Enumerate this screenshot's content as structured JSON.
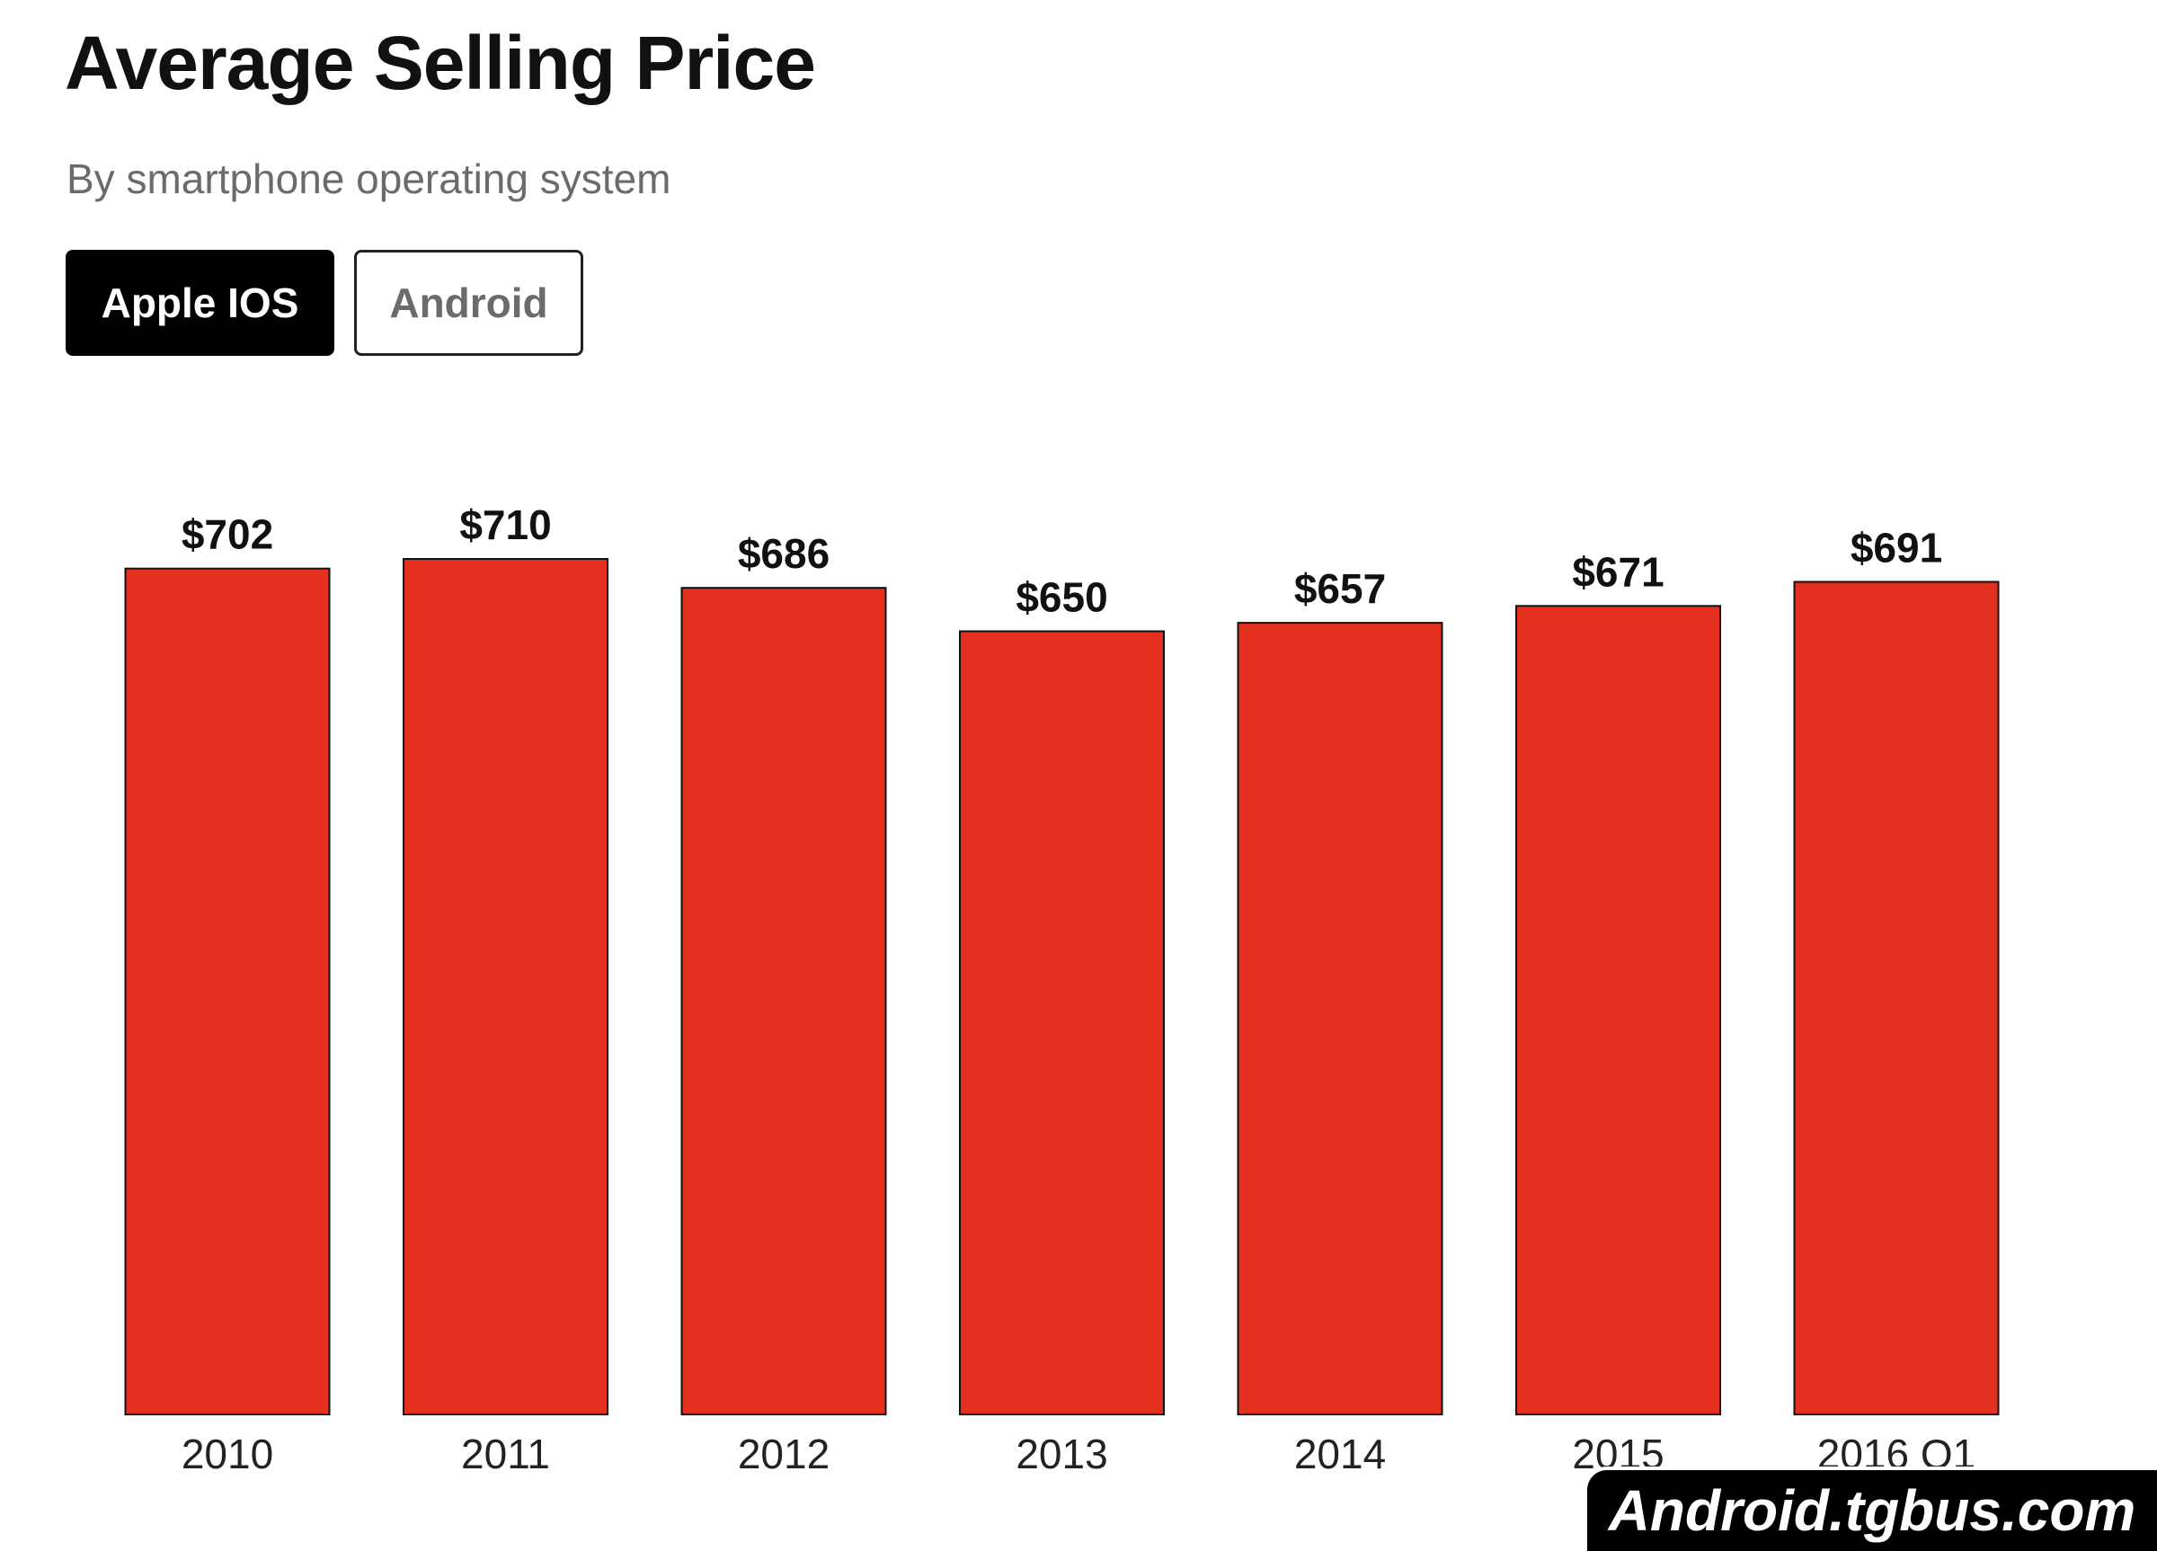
{
  "header": {
    "title": "Average Selling Price",
    "subtitle": "By smartphone operating system"
  },
  "tabs": [
    {
      "label": "Apple IOS",
      "active": true
    },
    {
      "label": "Android",
      "active": false
    }
  ],
  "colors": {
    "bar": "#e53020",
    "bar_outline": "#111111",
    "label_text": "#111111",
    "tick_text": "#222222"
  },
  "chart_data": {
    "type": "bar",
    "title": "Average Selling Price",
    "subtitle": "By smartphone operating system",
    "categories": [
      "2010",
      "2011",
      "2012",
      "2013",
      "2014",
      "2015",
      "2016 Q1"
    ],
    "values": [
      702,
      710,
      686,
      650,
      657,
      671,
      691
    ],
    "data_labels": [
      "$702",
      "$710",
      "$686",
      "$650",
      "$657",
      "$671",
      "$691"
    ],
    "xlabel": "",
    "ylabel": "",
    "ylim": [
      0,
      710
    ],
    "grid": false,
    "legend": "none"
  },
  "watermark": {
    "text": "Android.tgbus.com"
  }
}
